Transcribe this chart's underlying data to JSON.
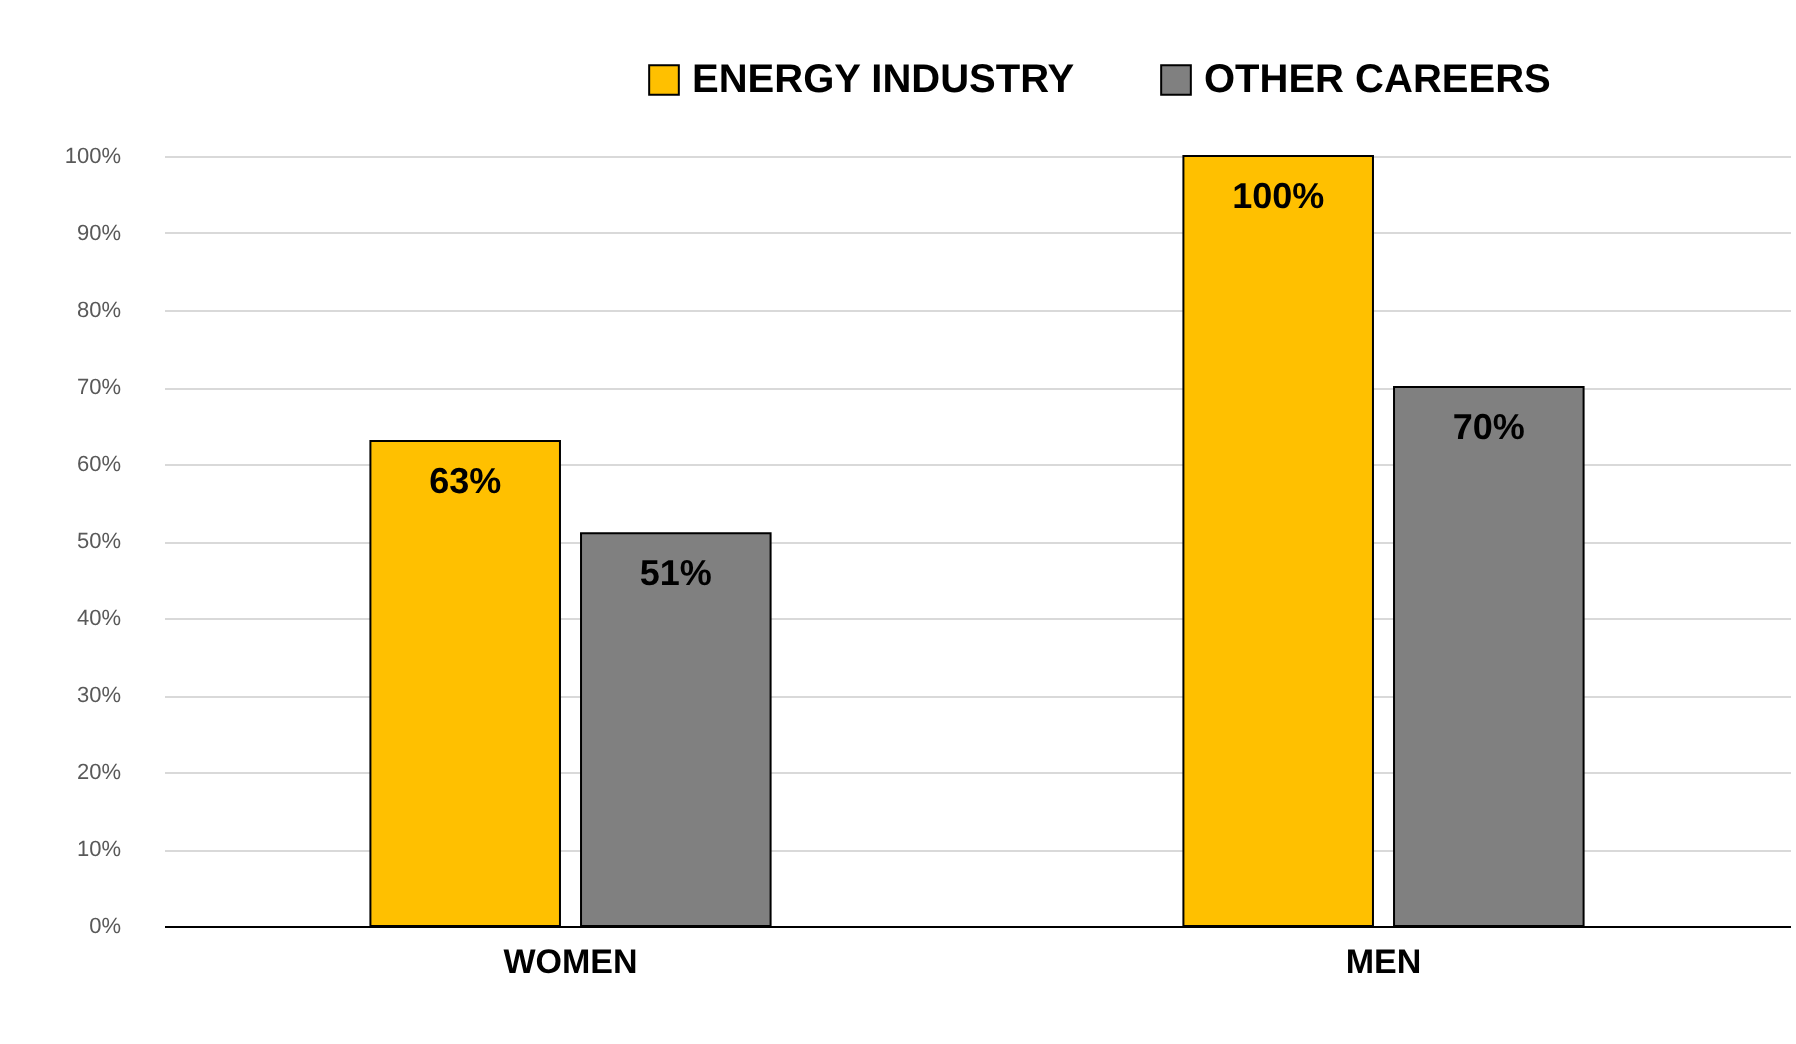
{
  "chart_data": {
    "type": "bar",
    "categories": [
      "WOMEN",
      "MEN"
    ],
    "series": [
      {
        "name": "ENERGY INDUSTRY",
        "color": "#ffc000",
        "values": [
          63,
          100
        ],
        "value_labels": [
          "63%",
          "100%"
        ]
      },
      {
        "name": "OTHER CAREERS",
        "color": "#808080",
        "values": [
          51,
          70
        ],
        "value_labels": [
          "51%",
          "70%"
        ]
      }
    ],
    "ylim": [
      0,
      100
    ],
    "yticks": [
      {
        "value": 0,
        "label": "0%"
      },
      {
        "value": 10,
        "label": "10%"
      },
      {
        "value": 20,
        "label": "20%"
      },
      {
        "value": 30,
        "label": "30%"
      },
      {
        "value": 40,
        "label": "40%"
      },
      {
        "value": 50,
        "label": "50%"
      },
      {
        "value": 60,
        "label": "60%"
      },
      {
        "value": 70,
        "label": "70%"
      },
      {
        "value": 80,
        "label": "80%"
      },
      {
        "value": 90,
        "label": "90%"
      },
      {
        "value": 100,
        "label": "100%"
      }
    ],
    "grid": "y",
    "legend": "top"
  }
}
